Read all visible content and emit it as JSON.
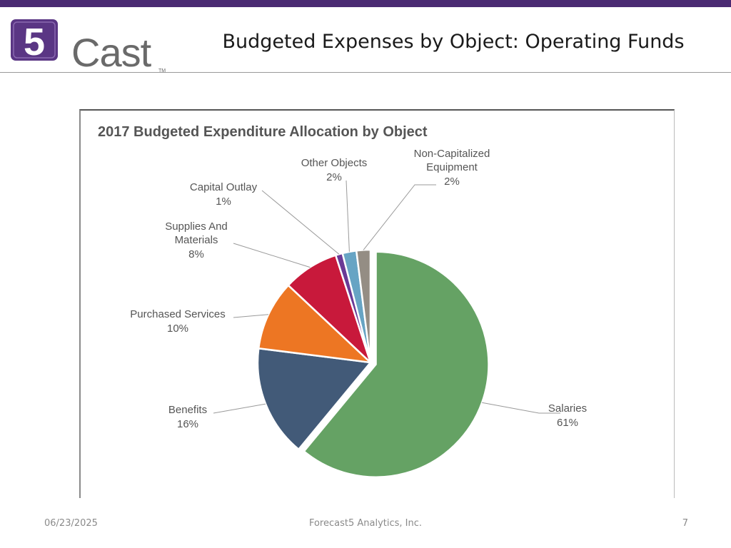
{
  "slide": {
    "title": "Budgeted Expenses by Object: Operating Funds",
    "logo": {
      "name": "5Cast",
      "digit": "5",
      "word": "Cast",
      "tm": "TM"
    },
    "footer": {
      "date": "06/23/2025",
      "company": "Forecast5 Analytics, Inc.",
      "page": "7"
    }
  },
  "colors": {
    "brand_purple": "#4a2a72",
    "salaries": "#65a264",
    "benefits": "#425a78",
    "purchased_services": "#ed7623",
    "supplies": "#c8193b",
    "capital_outlay": "#6a3a96",
    "other_objects": "#67a4c4",
    "non_capitalized": "#948d84"
  },
  "chart_data": {
    "type": "pie",
    "title": "2017 Budgeted Expenditure Allocation by Object",
    "legend": "none",
    "slices": [
      {
        "label": "Salaries",
        "value": 61,
        "display": "61%",
        "color": "#65a264",
        "explode": true
      },
      {
        "label": "Benefits",
        "value": 16,
        "display": "16%",
        "color": "#425a78"
      },
      {
        "label": "Purchased Services",
        "value": 10,
        "display": "10%",
        "color": "#ed7623"
      },
      {
        "label": "Supplies And Materials",
        "value": 8,
        "display": "8%",
        "color": "#c8193b"
      },
      {
        "label": "Capital Outlay",
        "value": 1,
        "display": "1%",
        "color": "#6a3a96"
      },
      {
        "label": "Other Objects",
        "value": 2,
        "display": "2%",
        "color": "#67a4c4"
      },
      {
        "label": "Non-Capitalized Equipment",
        "value": 2,
        "display": "2%",
        "color": "#948d84"
      }
    ]
  }
}
